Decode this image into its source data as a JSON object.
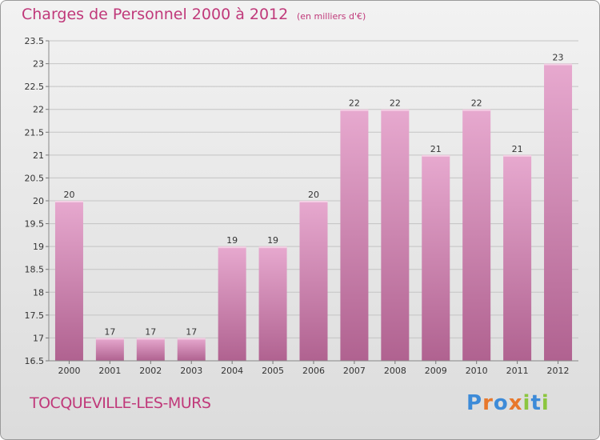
{
  "header": {
    "title": "Charges de Personnel 2000 à 2012",
    "subtitle": "(en milliers d'€)"
  },
  "footer": {
    "city": "TOCQUEVILLE-LES-MURS",
    "brand": "Proxiti"
  },
  "colors": {
    "accent": "#c0397a",
    "bar_top": "#e7a9cf",
    "bar_bottom": "#b06290",
    "brand_letters": [
      "#3d8bd8",
      "#e8782c",
      "#3d8bd8",
      "#e8782c",
      "#8cc63f",
      "#3d8bd8",
      "#8cc63f"
    ]
  },
  "chart_data": {
    "type": "bar",
    "categories": [
      "2000",
      "2001",
      "2002",
      "2003",
      "2004",
      "2005",
      "2006",
      "2007",
      "2008",
      "2009",
      "2010",
      "2011",
      "2012"
    ],
    "values": [
      20,
      17,
      17,
      17,
      19,
      19,
      20,
      22,
      22,
      21,
      22,
      21,
      23
    ],
    "data_labels": [
      "20",
      "17",
      "17",
      "17",
      "19",
      "19",
      "20",
      "22",
      "22",
      "21",
      "22",
      "21",
      "23"
    ],
    "ylim": [
      16.5,
      23.5
    ],
    "yticks": [
      "16.5",
      "17",
      "17.5",
      "18",
      "18.5",
      "19",
      "19.5",
      "20",
      "20.5",
      "21",
      "21.5",
      "22",
      "22.5",
      "23",
      "23.5"
    ],
    "grid": true,
    "xlabel": "",
    "ylabel": ""
  }
}
